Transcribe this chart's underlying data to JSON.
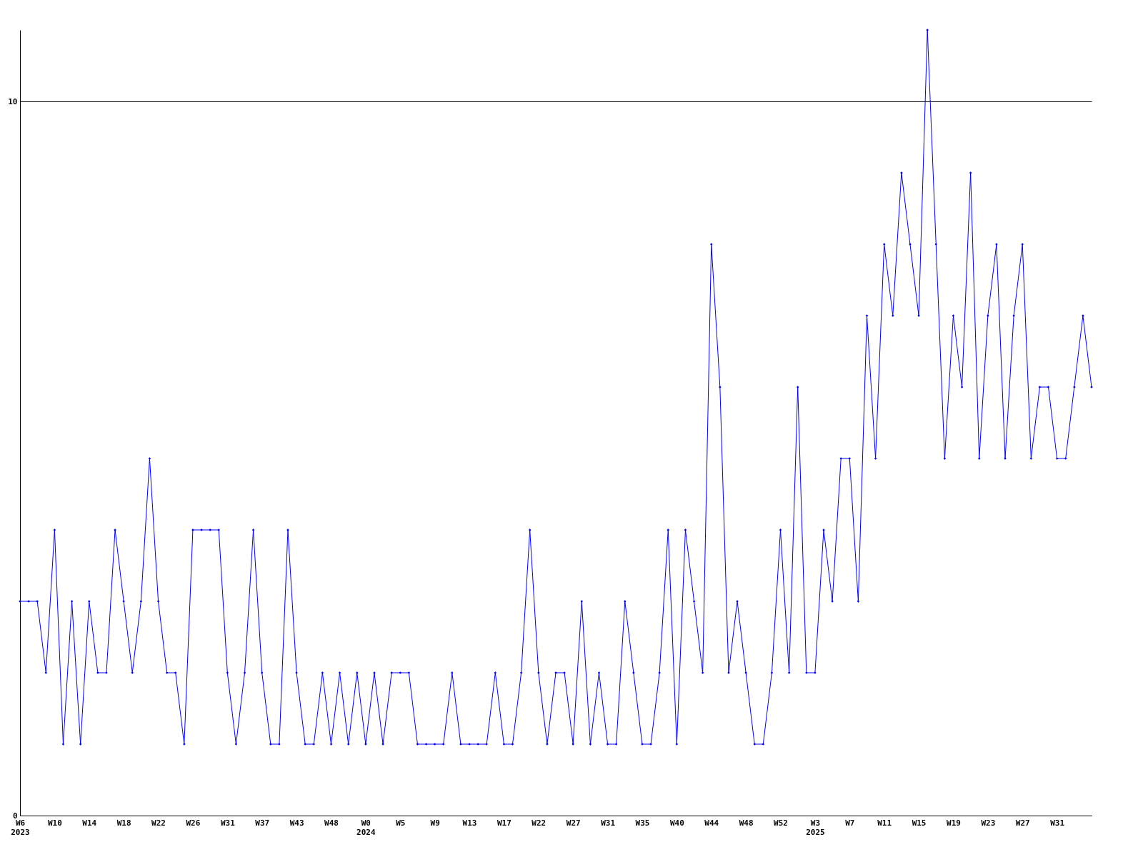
{
  "chart_data": {
    "type": "line",
    "categories": [
      "W6\n2023",
      null,
      null,
      null,
      "W10",
      null,
      null,
      null,
      "W14",
      null,
      null,
      null,
      "W18",
      null,
      null,
      null,
      "W22",
      null,
      null,
      null,
      "W26",
      null,
      null,
      null,
      "W31",
      null,
      null,
      null,
      "W37",
      null,
      null,
      null,
      "W43",
      null,
      null,
      null,
      "W48",
      null,
      null,
      null,
      "W0\n2024",
      null,
      null,
      null,
      "W5",
      null,
      null,
      null,
      "W9",
      null,
      null,
      null,
      "W13",
      null,
      null,
      null,
      "W17",
      null,
      null,
      null,
      "W22",
      null,
      null,
      null,
      "W27",
      null,
      null,
      null,
      "W31",
      null,
      null,
      null,
      "W35",
      null,
      null,
      null,
      "W40",
      null,
      null,
      null,
      "W44",
      null,
      null,
      null,
      "W48",
      null,
      null,
      null,
      "W52",
      null,
      null,
      null,
      "W3\n2025",
      null,
      null,
      null,
      "W7",
      null,
      null,
      null,
      "W11",
      null,
      null,
      null,
      "W15",
      null,
      null,
      null,
      "W19",
      null,
      null,
      null,
      "W23",
      null,
      null,
      null,
      "W27",
      null,
      null,
      null,
      "W31",
      null,
      null,
      null,
      null
    ],
    "series": [
      {
        "color": "#0000ff",
        "values": [
          3,
          3,
          3,
          2,
          4,
          1,
          3,
          1,
          3,
          2,
          2,
          4,
          3,
          2,
          3,
          5,
          3,
          2,
          2,
          1,
          4,
          4,
          4,
          4,
          2,
          1,
          2,
          4,
          2,
          1,
          1,
          4,
          2,
          1,
          1,
          2,
          1,
          2,
          1,
          2,
          1,
          2,
          1,
          2,
          2,
          2,
          1,
          1,
          1,
          1,
          2,
          1,
          1,
          1,
          1,
          2,
          1,
          1,
          2,
          4,
          2,
          1,
          2,
          2,
          1,
          3,
          1,
          2,
          1,
          1,
          3,
          2,
          1,
          1,
          2,
          4,
          1,
          4,
          3,
          2,
          8,
          6,
          2,
          3,
          2,
          1,
          1,
          2,
          4,
          2,
          6,
          2,
          2,
          4,
          3,
          5,
          5,
          3,
          7,
          5,
          8,
          7,
          9,
          8,
          7,
          11,
          8,
          5,
          7,
          6,
          9,
          5,
          7,
          8,
          5,
          7,
          8,
          5,
          6,
          6,
          5,
          5,
          6,
          7,
          6
        ]
      }
    ],
    "ylim": [
      0,
      11
    ],
    "yticks": [
      0,
      10
    ],
    "grid": "y",
    "marker": "diamond",
    "line_style": "solid"
  }
}
